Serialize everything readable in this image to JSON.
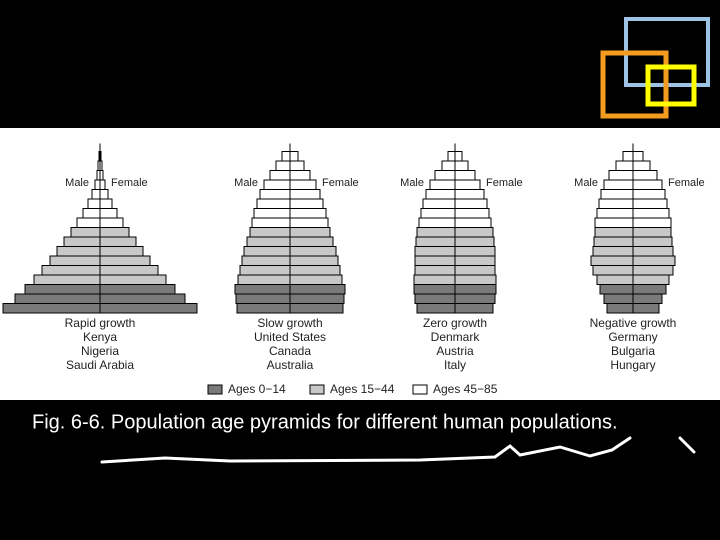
{
  "pyramids": [
    {
      "male_label": "Male",
      "female_label": "Female",
      "caption": [
        "Rapid growth",
        "Kenya",
        "Nigeria",
        "Saudi Arabia"
      ],
      "groups": [
        [
          9.7,
          8.5,
          7.5
        ],
        [
          6.6,
          5.8,
          5.0,
          4.3,
          3.6,
          2.9
        ],
        [
          2.3,
          1.7,
          1.2,
          0.8,
          0.5,
          0.3,
          0.2,
          0.1
        ]
      ]
    },
    {
      "male_label": "Male",
      "female_label": "Female",
      "caption": [
        "Slow growth",
        "United States",
        "Canada",
        "Australia"
      ],
      "groups": [
        [
          5.3,
          5.4,
          5.5
        ],
        [
          5.2,
          5.0,
          4.8,
          4.6,
          4.3,
          4.0
        ],
        [
          3.8,
          3.6,
          3.3,
          3.0,
          2.6,
          2.0,
          1.4,
          0.8
        ]
      ]
    },
    {
      "male_label": "Male",
      "female_label": "Female",
      "caption": [
        "Zero growth",
        "Denmark",
        "Austria",
        "Italy"
      ],
      "groups": [
        [
          3.8,
          4.0,
          4.1
        ],
        [
          4.1,
          4.0,
          4.0,
          4.0,
          3.9,
          3.8
        ],
        [
          3.6,
          3.4,
          3.2,
          2.9,
          2.5,
          2.0,
          1.3,
          0.7
        ]
      ]
    },
    {
      "male_label": "Male",
      "female_label": "Female",
      "caption": [
        "Negative growth",
        "Germany",
        "Bulgaria",
        "Hungary"
      ],
      "groups": [
        [
          2.6,
          2.9,
          3.3
        ],
        [
          3.6,
          4.0,
          4.2,
          4.0,
          3.9,
          3.8
        ],
        [
          3.8,
          3.6,
          3.4,
          3.2,
          2.9,
          2.4,
          1.7,
          1.0
        ]
      ]
    }
  ],
  "legend": [
    {
      "label": "Ages 0−14",
      "color": "#7a7a7a"
    },
    {
      "label": "Ages 15−44",
      "color": "#c8c8c8"
    },
    {
      "label": "Ages 45−85",
      "color": "#ffffff"
    }
  ],
  "figure_caption": "Fig. 6-6. Population age pyramids for different human populations."
}
